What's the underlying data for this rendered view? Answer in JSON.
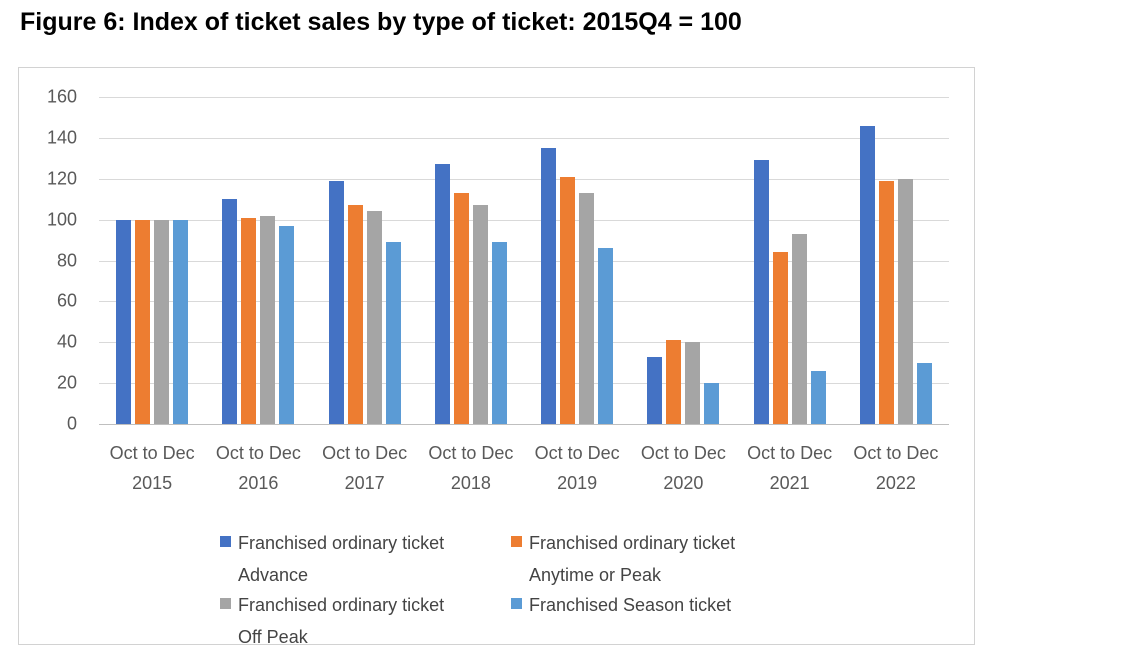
{
  "page": {
    "title": "Figure 6: Index of ticket sales by type of ticket: 2015Q4 = 100"
  },
  "chart_data": {
    "type": "bar",
    "title": "Figure 6: Index of ticket sales by type of ticket: 2015Q4 = 100",
    "x_tick_line1": "Oct to Dec",
    "years": [
      "2015",
      "2016",
      "2017",
      "2018",
      "2019",
      "2020",
      "2021",
      "2022"
    ],
    "categories": [
      "Oct to Dec 2015",
      "Oct to Dec 2016",
      "Oct to Dec 2017",
      "Oct to Dec 2018",
      "Oct to Dec 2019",
      "Oct to Dec 2020",
      "Oct to Dec 2021",
      "Oct to Dec 2022"
    ],
    "series": [
      {
        "name": "Franchised ordinary ticket Advance",
        "color": "#4472C4",
        "values": [
          100,
          110,
          119,
          127,
          135,
          33,
          129,
          146
        ]
      },
      {
        "name": "Franchised ordinary ticket Anytime or Peak",
        "color": "#ED7D31",
        "values": [
          100,
          101,
          107,
          113,
          121,
          41,
          84,
          119
        ]
      },
      {
        "name": "Franchised ordinary ticket Off Peak",
        "color": "#A5A5A5",
        "values": [
          100,
          102,
          104,
          107,
          113,
          40,
          93,
          120
        ]
      },
      {
        "name": "Franchised Season ticket",
        "color": "#5B9BD5",
        "values": [
          100,
          97,
          89,
          89,
          86,
          20,
          26,
          30
        ]
      }
    ],
    "legend": [
      {
        "line1": "Franchised ordinary ticket",
        "line2": "Advance",
        "color": "#4472C4"
      },
      {
        "line1": "Franchised ordinary ticket",
        "line2": "Anytime or Peak",
        "color": "#ED7D31"
      },
      {
        "line1": "Franchised ordinary ticket",
        "line2": "Off Peak",
        "color": "#A5A5A5"
      },
      {
        "line1": "Franchised Season ticket",
        "line2": "",
        "color": "#5B9BD5"
      }
    ],
    "ylim": [
      0,
      160
    ],
    "yticks": [
      0,
      20,
      40,
      60,
      80,
      100,
      120,
      140,
      160
    ],
    "xlabel": "",
    "ylabel": "",
    "grid": true,
    "legend_position": "bottom"
  },
  "colors": {
    "gridline": "#D9D9D9",
    "axis_line": "#BFBFBF",
    "axis_text": "#595959",
    "legend_text": "#444444",
    "chart_border": "#D2D2D2",
    "background": "#FFFFFF"
  }
}
